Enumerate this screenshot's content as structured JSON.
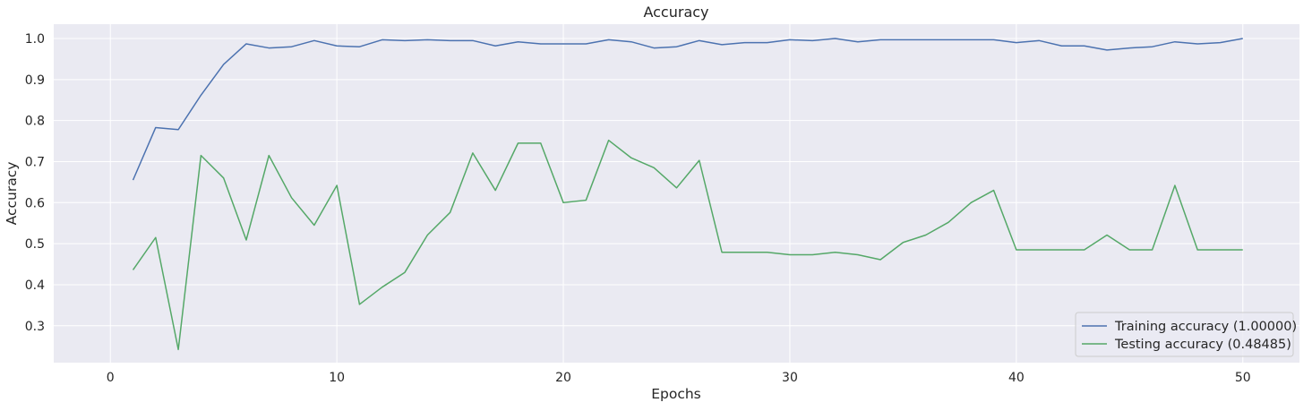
{
  "chart_data": {
    "type": "line",
    "title": "Accuracy",
    "xlabel": "Epochs",
    "ylabel": "Accuracy",
    "xlim": [
      -2.5,
      52.5
    ],
    "ylim": [
      0.21,
      1.035
    ],
    "xticks": [
      0,
      10,
      20,
      30,
      40,
      50
    ],
    "yticks": [
      0.3,
      0.4,
      0.5,
      0.6,
      0.7,
      0.8,
      0.9,
      1.0
    ],
    "xtick_labels": [
      "0",
      "10",
      "20",
      "30",
      "40",
      "50"
    ],
    "ytick_labels": [
      "0.3",
      "0.4",
      "0.5",
      "0.6",
      "0.7",
      "0.8",
      "0.9",
      "1.0"
    ],
    "grid": true,
    "legend_position": "lower right",
    "x": [
      1,
      2,
      3,
      4,
      5,
      6,
      7,
      8,
      9,
      10,
      11,
      12,
      13,
      14,
      15,
      16,
      17,
      18,
      19,
      20,
      21,
      22,
      23,
      24,
      25,
      26,
      27,
      28,
      29,
      30,
      31,
      32,
      33,
      34,
      35,
      36,
      37,
      38,
      39,
      40,
      41,
      42,
      43,
      44,
      45,
      46,
      47,
      48,
      49,
      50
    ],
    "series": [
      {
        "name": "Training accuracy (1.00000)",
        "color": "#4c72b0",
        "values": [
          0.655,
          0.783,
          0.778,
          0.862,
          0.937,
          0.987,
          0.977,
          0.98,
          0.995,
          0.982,
          0.98,
          0.997,
          0.995,
          0.997,
          0.995,
          0.995,
          0.982,
          0.992,
          0.987,
          0.987,
          0.987,
          0.997,
          0.992,
          0.977,
          0.98,
          0.995,
          0.985,
          0.99,
          0.99,
          0.997,
          0.995,
          1.0,
          0.992,
          0.997,
          0.997,
          0.997,
          0.997,
          0.997,
          0.997,
          0.99,
          0.995,
          0.982,
          0.982,
          0.972,
          0.977,
          0.98,
          0.992,
          0.987,
          0.99,
          1.0
        ]
      },
      {
        "name": "Testing accuracy (0.48485)",
        "color": "#55a868",
        "values": [
          0.436,
          0.515,
          0.242,
          0.715,
          0.66,
          0.509,
          0.715,
          0.612,
          0.545,
          0.642,
          0.352,
          0.394,
          0.43,
          0.521,
          0.576,
          0.721,
          0.63,
          0.745,
          0.745,
          0.6,
          0.606,
          0.752,
          0.709,
          0.685,
          0.636,
          0.703,
          0.479,
          0.479,
          0.479,
          0.473,
          0.473,
          0.479,
          0.473,
          0.461,
          0.503,
          0.521,
          0.552,
          0.6,
          0.63,
          0.485,
          0.485,
          0.485,
          0.485,
          0.521,
          0.485,
          0.485,
          0.642,
          0.485,
          0.485,
          0.485
        ]
      }
    ]
  },
  "colors": {
    "plot_background": "#eaeaf2",
    "grid": "#ffffff",
    "text": "#262626"
  }
}
